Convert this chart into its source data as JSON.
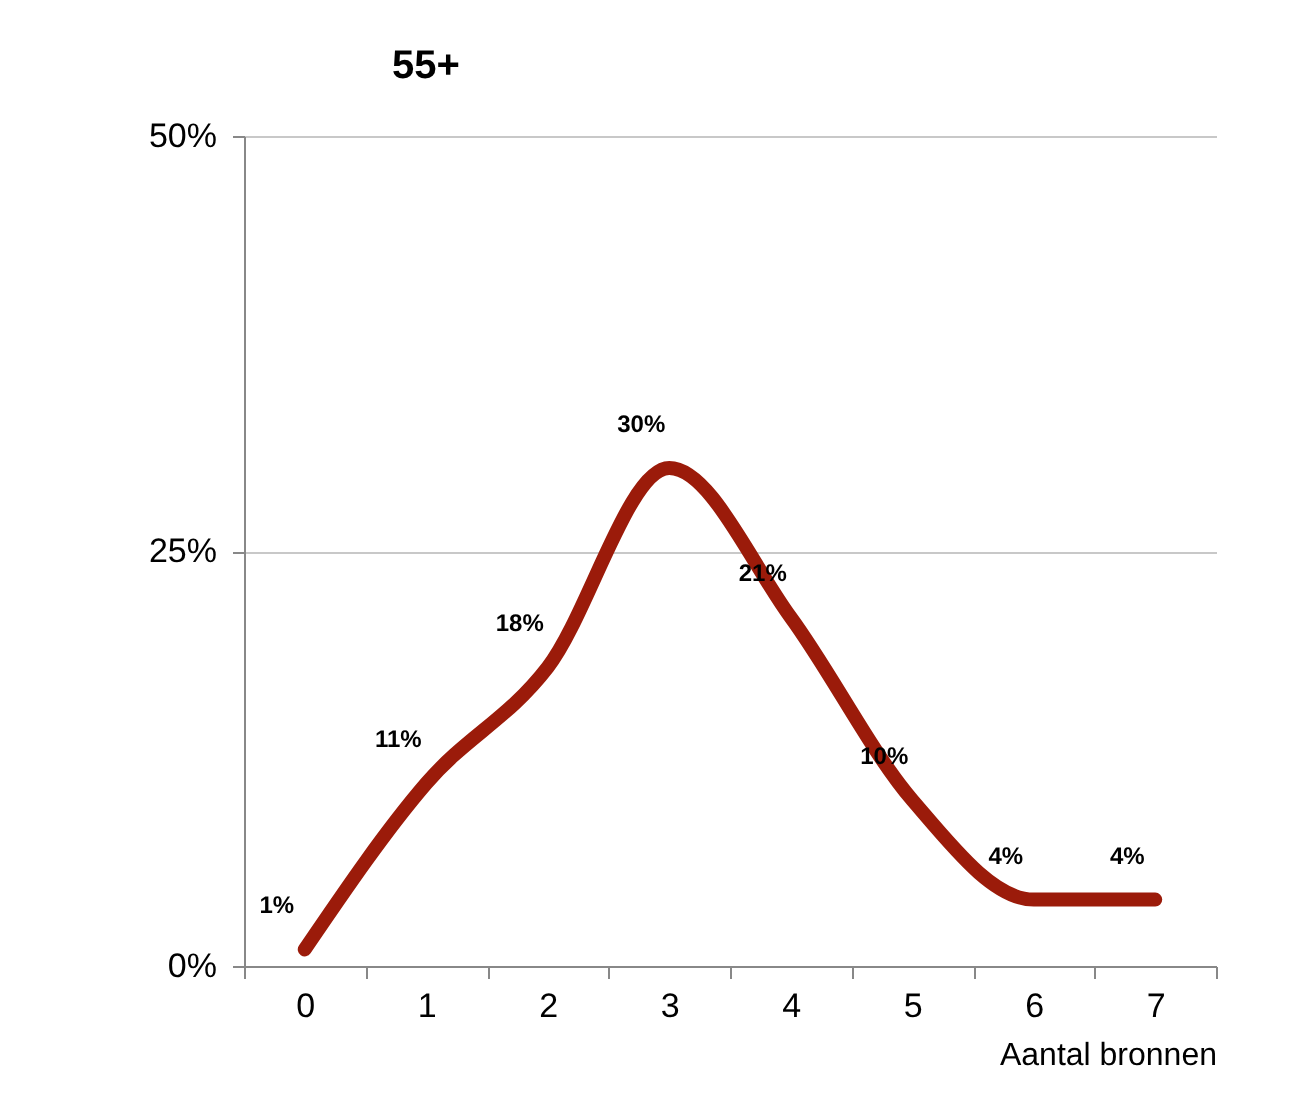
{
  "chart_data": {
    "type": "line",
    "title": "55+",
    "xlabel": "Aantal bronnen",
    "categories": [
      "0",
      "1",
      "2",
      "3",
      "4",
      "5",
      "6",
      "7"
    ],
    "series": [
      {
        "color": "#9b1b0a",
        "values": [
          1,
          11,
          18,
          30,
          21,
          10,
          4,
          4
        ],
        "value_labels": [
          "1%",
          "11%",
          "18%",
          "30%",
          "21%",
          "10%",
          "4%",
          "4%"
        ]
      }
    ],
    "ylim": [
      0,
      50
    ],
    "yticks": [
      {
        "value": 0,
        "label": "0%"
      },
      {
        "value": 25,
        "label": "25%"
      },
      {
        "value": 50,
        "label": "50%"
      }
    ],
    "grid": "y",
    "marker": "none",
    "line_style": "solid"
  }
}
